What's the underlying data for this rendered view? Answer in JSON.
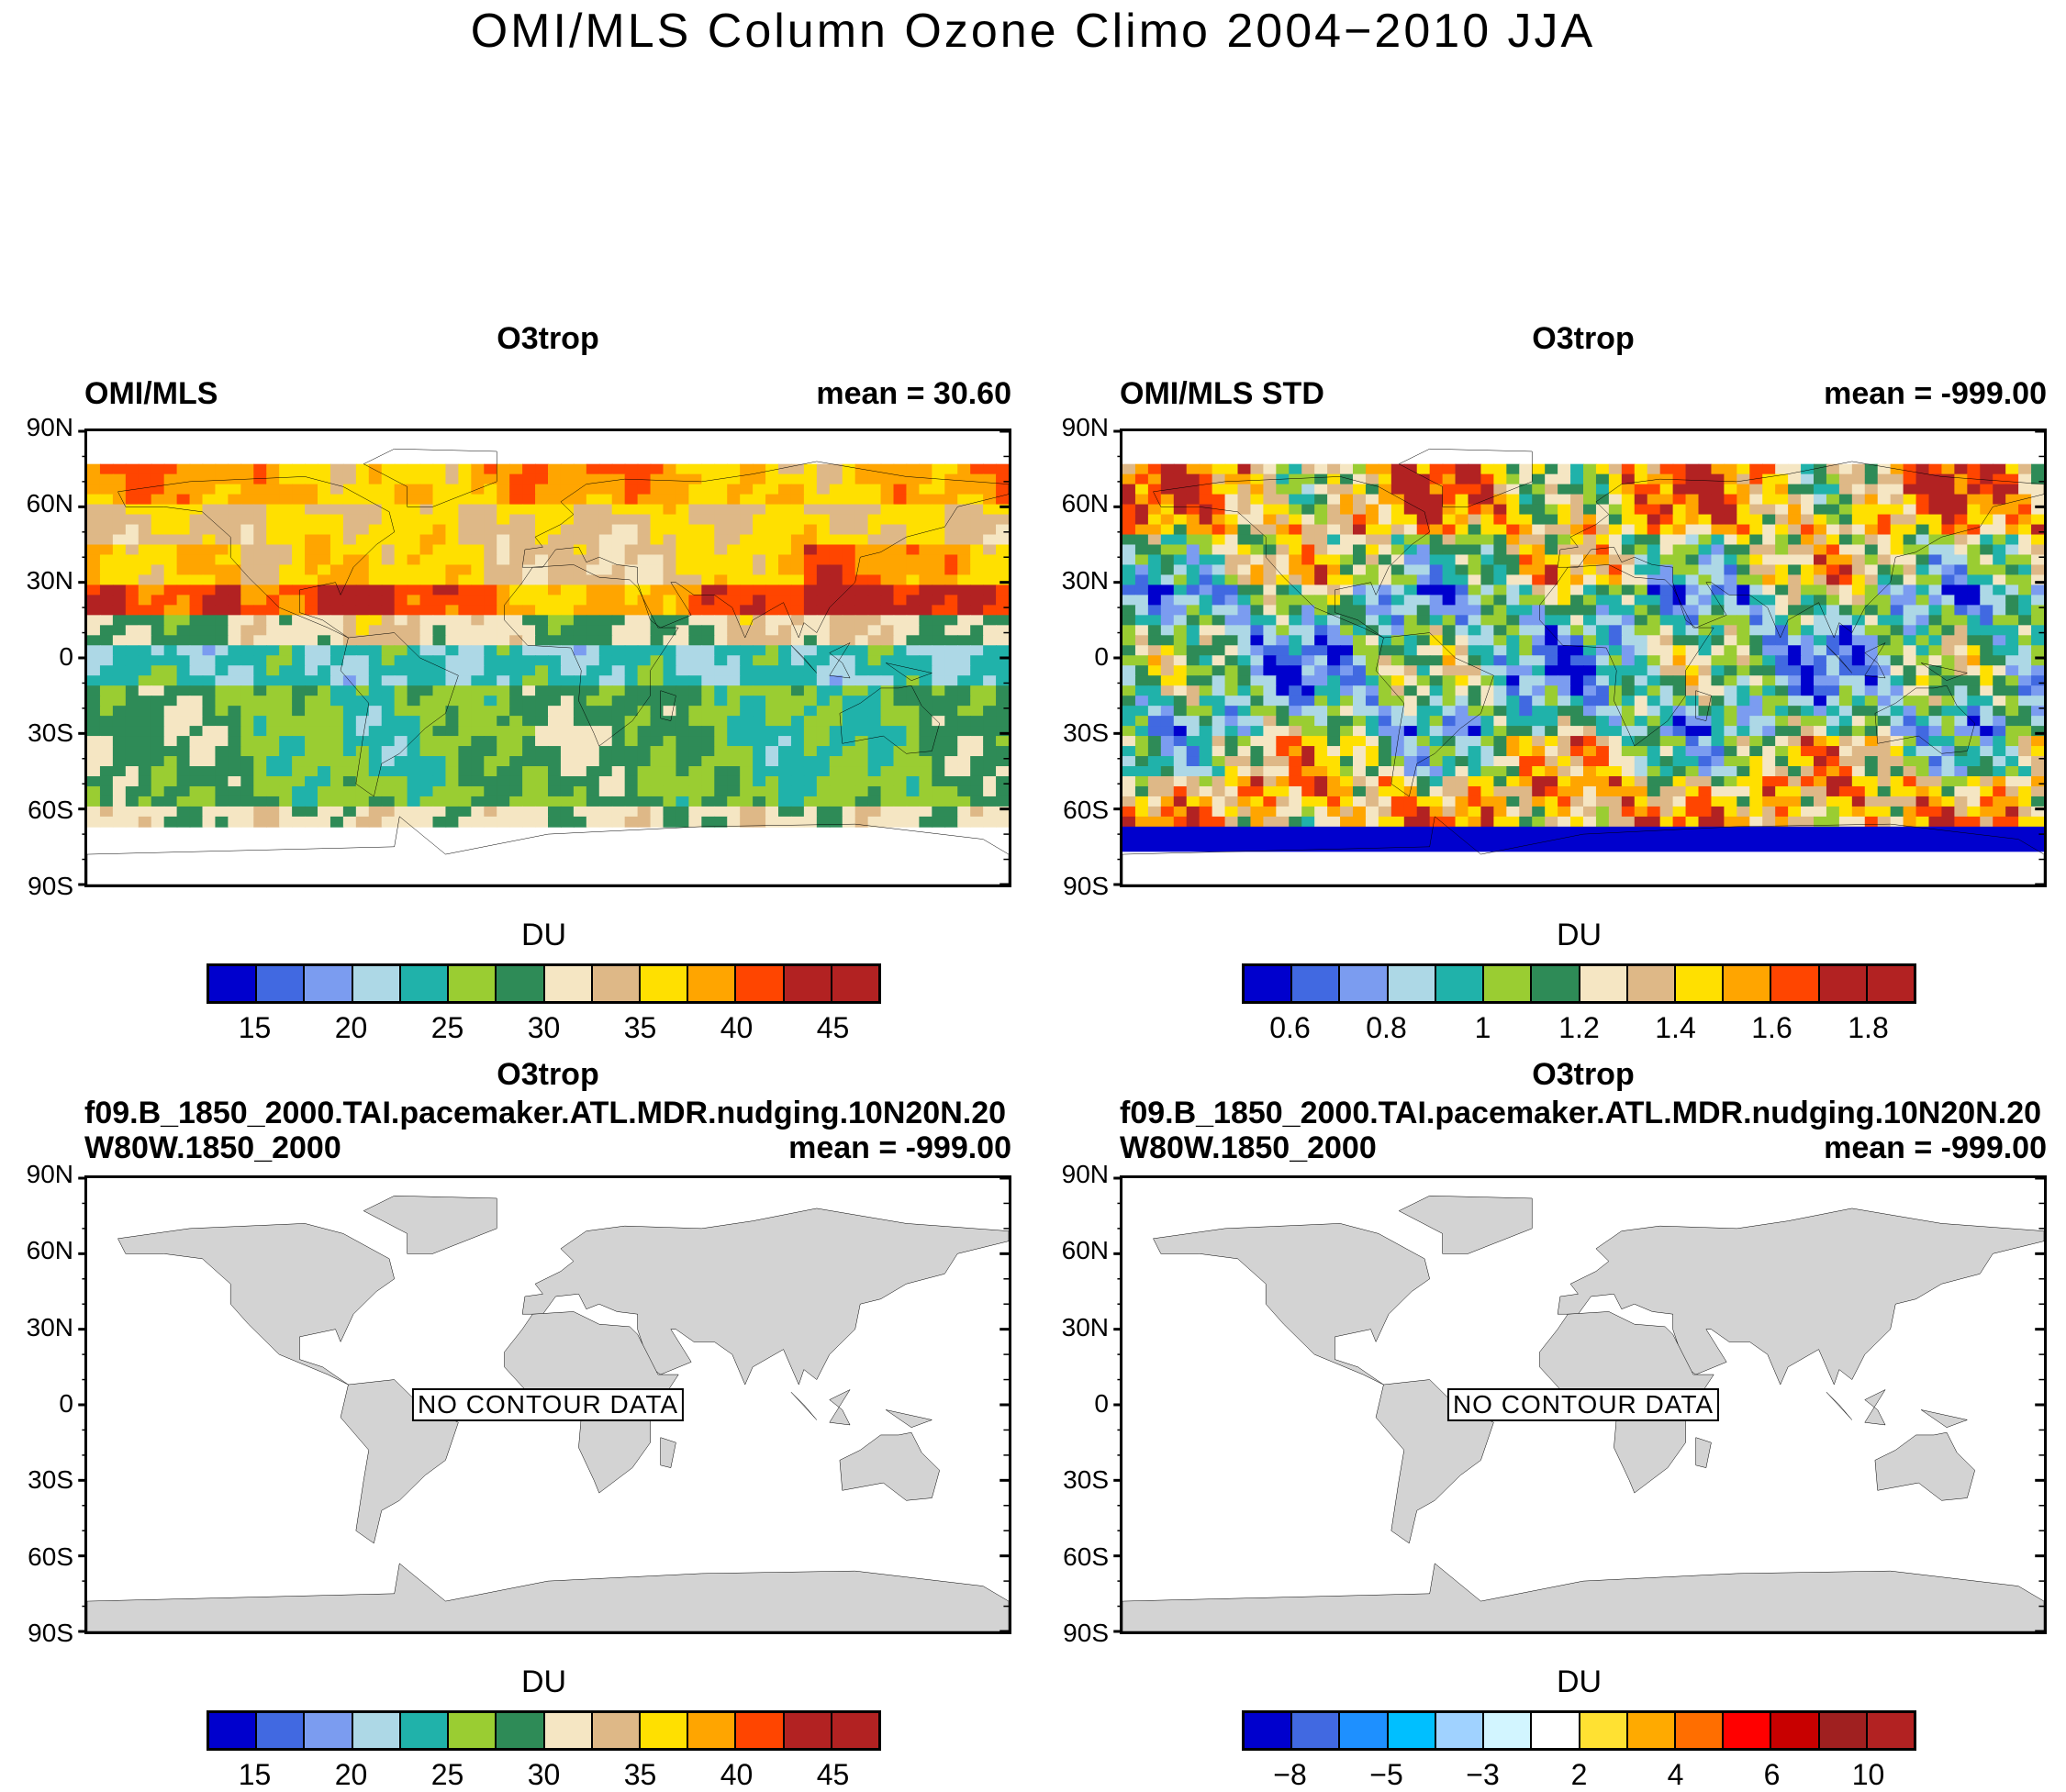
{
  "title": "OMI/MLS Column Ozone Climo 2004−2010 JJA",
  "lat_labels": [
    "90N",
    "60N",
    "30N",
    "0",
    "30S",
    "60S",
    "90S"
  ],
  "colors": {
    "land": "#d3d3d3",
    "ocean": "#ffffff",
    "outline": "#000000"
  },
  "panels": [
    {
      "title": "O3trop",
      "left": "OMI/MLS",
      "right": "mean =  30.60",
      "kind": "o3",
      "no_data": "",
      "colorbar": {
        "unit": "DU",
        "labels": [
          "15",
          "20",
          "25",
          "30",
          "35",
          "40",
          "45"
        ],
        "colors": [
          "#0000cd",
          "#4169e1",
          "#7b9cf0",
          "#add8e6",
          "#20b2aa",
          "#9acd32",
          "#2e8b57",
          "#f5e6c3",
          "#deb887",
          "#ffe000",
          "#ffa500",
          "#ff4500",
          "#b22222",
          "#b22222"
        ]
      }
    },
    {
      "title": "O3trop",
      "left": "OMI/MLS STD",
      "right": "mean = -999.00",
      "kind": "std",
      "no_data": "",
      "colorbar": {
        "unit": "DU",
        "labels": [
          "0.6",
          "0.8",
          "1",
          "1.2",
          "1.4",
          "1.6",
          "1.8"
        ],
        "colors": [
          "#0000cd",
          "#4169e1",
          "#7b9cf0",
          "#add8e6",
          "#20b2aa",
          "#9acd32",
          "#2e8b57",
          "#f5e6c3",
          "#deb887",
          "#ffe000",
          "#ffa500",
          "#ff4500",
          "#b22222",
          "#b22222"
        ]
      }
    },
    {
      "title": "O3trop",
      "left": "f09.B_1850_2000.TAI.pacemaker.ATL.MDR.nudging.10N20N.20W80W.1850_2000",
      "right": "mean = -999.00",
      "kind": "empty",
      "no_data": "NO CONTOUR DATA",
      "colorbar": {
        "unit": "DU",
        "labels": [
          "15",
          "20",
          "25",
          "30",
          "35",
          "40",
          "45"
        ],
        "colors": [
          "#0000cd",
          "#4169e1",
          "#7b9cf0",
          "#add8e6",
          "#20b2aa",
          "#9acd32",
          "#2e8b57",
          "#f5e6c3",
          "#deb887",
          "#ffe000",
          "#ffa500",
          "#ff4500",
          "#b22222",
          "#b22222"
        ]
      }
    },
    {
      "title": "O3trop",
      "left": "f09.B_1850_2000.TAI.pacemaker.ATL.MDR.nudging.10N20N.20W80W.1850_2000",
      "right": "mean = -999.00",
      "kind": "empty",
      "no_data": "NO CONTOUR DATA",
      "colorbar": {
        "unit": "DU",
        "labels": [
          "−8",
          "−5",
          "−3",
          "2",
          "4",
          "6",
          "10"
        ],
        "colors": [
          "#0000cd",
          "#4169e1",
          "#1e90ff",
          "#00bfff",
          "#a0d2ff",
          "#d2f5ff",
          "#ffffff",
          "#ffe132",
          "#ffaa00",
          "#ff6e00",
          "#ff0000",
          "#c80000",
          "#a02020",
          "#b22222"
        ]
      }
    }
  ]
}
